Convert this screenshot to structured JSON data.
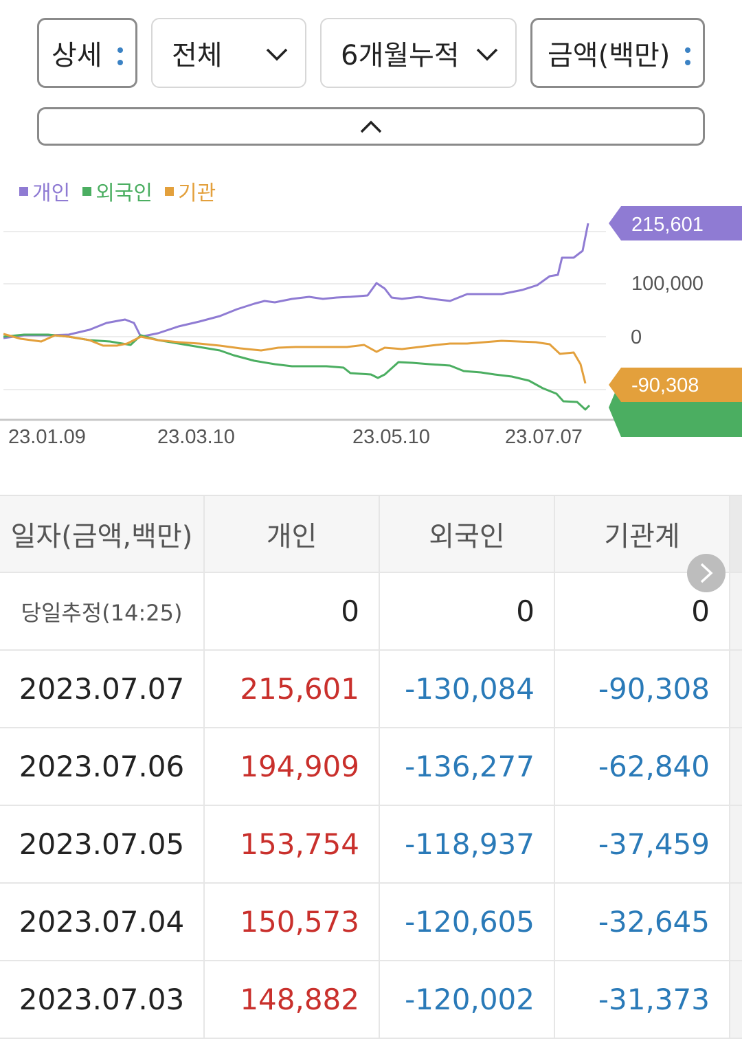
{
  "filters": {
    "view": "상세",
    "investor": "전체",
    "period": "6개월누적",
    "unit": "금액(백만)"
  },
  "icons": {
    "view_menu": "vertical-dots-icon",
    "investor_dropdown": "chevron-down-icon",
    "period_dropdown": "chevron-down-icon",
    "unit_menu": "vertical-dots-icon",
    "collapse": "chevron-up-icon",
    "table_next": "chevron-right-icon"
  },
  "chart_data": {
    "type": "line",
    "legend": {
      "placement": "top-left"
    },
    "series": [
      {
        "name": "개인",
        "color": "#8f7bd3"
      },
      {
        "name": "외국인",
        "color": "#4bae61"
      },
      {
        "name": "기관",
        "color": "#e3a03c"
      }
    ],
    "x_ticks": [
      "23.01.09",
      "23.03.10",
      "23.05.10",
      "23.07.07"
    ],
    "y_ticks": [
      "100,000",
      "0"
    ],
    "value_labels": {
      "individual": "215,601",
      "institution": "-90,308"
    },
    "ylim": [
      -150000,
      240000
    ],
    "grid": true
  },
  "table": {
    "headers": [
      "일자(금액,백만)",
      "개인",
      "외국인",
      "기관계"
    ],
    "today": {
      "label": "당일추정(14:25)",
      "individual": "0",
      "foreign": "0",
      "institution": "0"
    },
    "rows": [
      {
        "date": "2023.07.07",
        "individual": "215,601",
        "foreign": "-130,084",
        "institution": "-90,308"
      },
      {
        "date": "2023.07.06",
        "individual": "194,909",
        "foreign": "-136,277",
        "institution": "-62,840"
      },
      {
        "date": "2023.07.05",
        "individual": "153,754",
        "foreign": "-118,937",
        "institution": "-37,459"
      },
      {
        "date": "2023.07.04",
        "individual": "150,573",
        "foreign": "-120,605",
        "institution": "-32,645"
      },
      {
        "date": "2023.07.03",
        "individual": "148,882",
        "foreign": "-120,002",
        "institution": "-31,373"
      }
    ]
  }
}
